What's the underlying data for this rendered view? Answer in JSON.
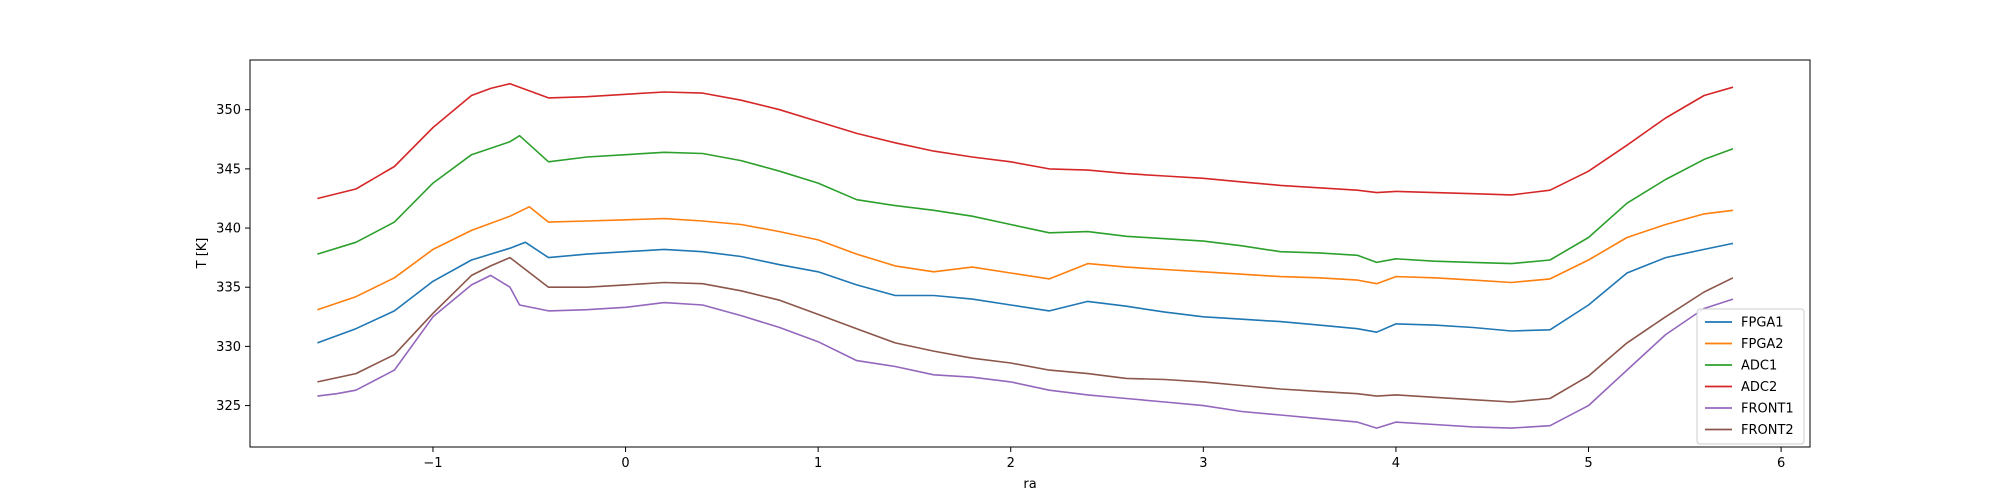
{
  "chart_data": {
    "type": "line",
    "title": "",
    "xlabel": "ra",
    "ylabel": "T [K]",
    "xlim": [
      -1.95,
      6.15
    ],
    "ylim": [
      321.5,
      354.2
    ],
    "xticks": [
      -1,
      0,
      1,
      2,
      3,
      4,
      5,
      6
    ],
    "yticks": [
      325,
      330,
      335,
      340,
      345,
      350
    ],
    "grid": false,
    "legend_position": "lower-right",
    "series": [
      {
        "name": "FPGA1",
        "color": "#1f77b4",
        "x": [
          -1.6,
          -1.4,
          -1.2,
          -1.0,
          -0.8,
          -0.6,
          -0.52,
          -0.4,
          -0.2,
          0.0,
          0.2,
          0.4,
          0.6,
          0.8,
          1.0,
          1.2,
          1.4,
          1.6,
          1.8,
          2.0,
          2.2,
          2.4,
          2.6,
          2.8,
          3.0,
          3.2,
          3.4,
          3.6,
          3.8,
          3.9,
          4.0,
          4.2,
          4.4,
          4.6,
          4.8,
          5.0,
          5.2,
          5.4,
          5.6,
          5.75
        ],
        "y": [
          330.3,
          331.5,
          333.0,
          335.5,
          337.3,
          338.3,
          338.8,
          337.5,
          337.8,
          338.0,
          338.2,
          338.0,
          337.6,
          336.9,
          336.3,
          335.2,
          334.3,
          334.3,
          334.0,
          333.5,
          333.0,
          333.8,
          333.4,
          332.9,
          332.5,
          332.3,
          332.1,
          331.8,
          331.5,
          331.2,
          331.9,
          331.8,
          331.6,
          331.3,
          331.4,
          333.5,
          336.2,
          337.5,
          338.2,
          338.7
        ]
      },
      {
        "name": "FPGA2",
        "color": "#ff7f0e",
        "x": [
          -1.6,
          -1.4,
          -1.2,
          -1.0,
          -0.8,
          -0.6,
          -0.5,
          -0.4,
          -0.2,
          0.0,
          0.2,
          0.4,
          0.6,
          0.8,
          1.0,
          1.2,
          1.4,
          1.6,
          1.8,
          2.0,
          2.2,
          2.4,
          2.6,
          2.8,
          3.0,
          3.2,
          3.4,
          3.6,
          3.8,
          3.9,
          4.0,
          4.2,
          4.4,
          4.6,
          4.8,
          5.0,
          5.2,
          5.4,
          5.6,
          5.75
        ],
        "y": [
          333.1,
          334.2,
          335.8,
          338.2,
          339.8,
          341.0,
          341.8,
          340.5,
          340.6,
          340.7,
          340.8,
          340.6,
          340.3,
          339.7,
          339.0,
          337.8,
          336.8,
          336.3,
          336.7,
          336.2,
          335.7,
          337.0,
          336.7,
          336.5,
          336.3,
          336.1,
          335.9,
          335.8,
          335.6,
          335.3,
          335.9,
          335.8,
          335.6,
          335.4,
          335.7,
          337.3,
          339.2,
          340.3,
          341.2,
          341.5
        ]
      },
      {
        "name": "ADC1",
        "color": "#2ca02c",
        "x": [
          -1.6,
          -1.4,
          -1.2,
          -1.0,
          -0.8,
          -0.6,
          -0.55,
          -0.4,
          -0.2,
          0.0,
          0.2,
          0.4,
          0.6,
          0.8,
          1.0,
          1.2,
          1.4,
          1.6,
          1.8,
          2.0,
          2.2,
          2.4,
          2.6,
          2.8,
          3.0,
          3.2,
          3.4,
          3.6,
          3.8,
          3.9,
          4.0,
          4.2,
          4.4,
          4.6,
          4.8,
          5.0,
          5.2,
          5.4,
          5.6,
          5.75
        ],
        "y": [
          337.8,
          338.8,
          340.5,
          343.8,
          346.2,
          347.3,
          347.8,
          345.6,
          346.0,
          346.2,
          346.4,
          346.3,
          345.7,
          344.8,
          343.8,
          342.4,
          341.9,
          341.5,
          341.0,
          340.3,
          339.6,
          339.7,
          339.3,
          339.1,
          338.9,
          338.5,
          338.0,
          337.9,
          337.7,
          337.1,
          337.4,
          337.2,
          337.1,
          337.0,
          337.3,
          339.2,
          342.1,
          344.1,
          345.8,
          346.7
        ]
      },
      {
        "name": "ADC2",
        "color": "#d62728",
        "x": [
          -1.6,
          -1.4,
          -1.2,
          -1.0,
          -0.8,
          -0.7,
          -0.6,
          -0.4,
          -0.2,
          0.0,
          0.2,
          0.4,
          0.6,
          0.8,
          1.0,
          1.2,
          1.4,
          1.6,
          1.8,
          2.0,
          2.2,
          2.4,
          2.6,
          2.8,
          3.0,
          3.2,
          3.4,
          3.6,
          3.8,
          3.9,
          4.0,
          4.2,
          4.4,
          4.6,
          4.8,
          5.0,
          5.2,
          5.4,
          5.6,
          5.75
        ],
        "y": [
          342.5,
          343.3,
          345.2,
          348.5,
          351.2,
          351.8,
          352.2,
          351.0,
          351.1,
          351.3,
          351.5,
          351.4,
          350.8,
          350.0,
          349.0,
          348.0,
          347.2,
          346.5,
          346.0,
          345.6,
          345.0,
          344.9,
          344.6,
          344.4,
          344.2,
          343.9,
          343.6,
          343.4,
          343.2,
          343.0,
          343.1,
          343.0,
          342.9,
          342.8,
          343.2,
          344.8,
          347.0,
          349.3,
          351.2,
          351.9
        ]
      },
      {
        "name": "FRONT1",
        "color": "#9467bd",
        "x": [
          -1.6,
          -1.5,
          -1.4,
          -1.2,
          -1.0,
          -0.8,
          -0.7,
          -0.6,
          -0.55,
          -0.4,
          -0.2,
          0.0,
          0.2,
          0.4,
          0.6,
          0.8,
          1.0,
          1.2,
          1.4,
          1.6,
          1.8,
          2.0,
          2.2,
          2.4,
          2.6,
          2.8,
          3.0,
          3.2,
          3.4,
          3.6,
          3.8,
          3.9,
          4.0,
          4.2,
          4.4,
          4.6,
          4.8,
          5.0,
          5.2,
          5.4,
          5.6,
          5.75
        ],
        "y": [
          325.8,
          326.0,
          326.3,
          328.0,
          332.5,
          335.2,
          336.0,
          335.0,
          333.5,
          333.0,
          333.1,
          333.3,
          333.7,
          333.5,
          332.6,
          331.6,
          330.4,
          328.8,
          328.3,
          327.6,
          327.4,
          327.0,
          326.3,
          325.9,
          325.6,
          325.3,
          325.0,
          324.5,
          324.2,
          323.9,
          323.6,
          323.1,
          323.6,
          323.4,
          323.2,
          323.1,
          323.3,
          325.0,
          328.0,
          331.0,
          333.2,
          334.0
        ]
      },
      {
        "name": "FRONT2",
        "color": "#8c564b",
        "x": [
          -1.6,
          -1.4,
          -1.2,
          -1.0,
          -0.8,
          -0.7,
          -0.6,
          -0.4,
          -0.2,
          0.0,
          0.2,
          0.4,
          0.6,
          0.8,
          1.0,
          1.2,
          1.4,
          1.6,
          1.8,
          2.0,
          2.2,
          2.4,
          2.6,
          2.8,
          3.0,
          3.2,
          3.4,
          3.6,
          3.8,
          3.9,
          4.0,
          4.2,
          4.4,
          4.6,
          4.8,
          5.0,
          5.2,
          5.4,
          5.6,
          5.75
        ],
        "y": [
          327.0,
          327.7,
          329.3,
          332.8,
          336.0,
          336.8,
          337.5,
          335.0,
          335.0,
          335.2,
          335.4,
          335.3,
          334.7,
          333.9,
          332.7,
          331.5,
          330.3,
          329.6,
          329.0,
          328.6,
          328.0,
          327.7,
          327.3,
          327.2,
          327.0,
          326.7,
          326.4,
          326.2,
          326.0,
          325.8,
          325.9,
          325.7,
          325.5,
          325.3,
          325.6,
          327.5,
          330.3,
          332.5,
          334.6,
          335.8
        ]
      }
    ]
  }
}
